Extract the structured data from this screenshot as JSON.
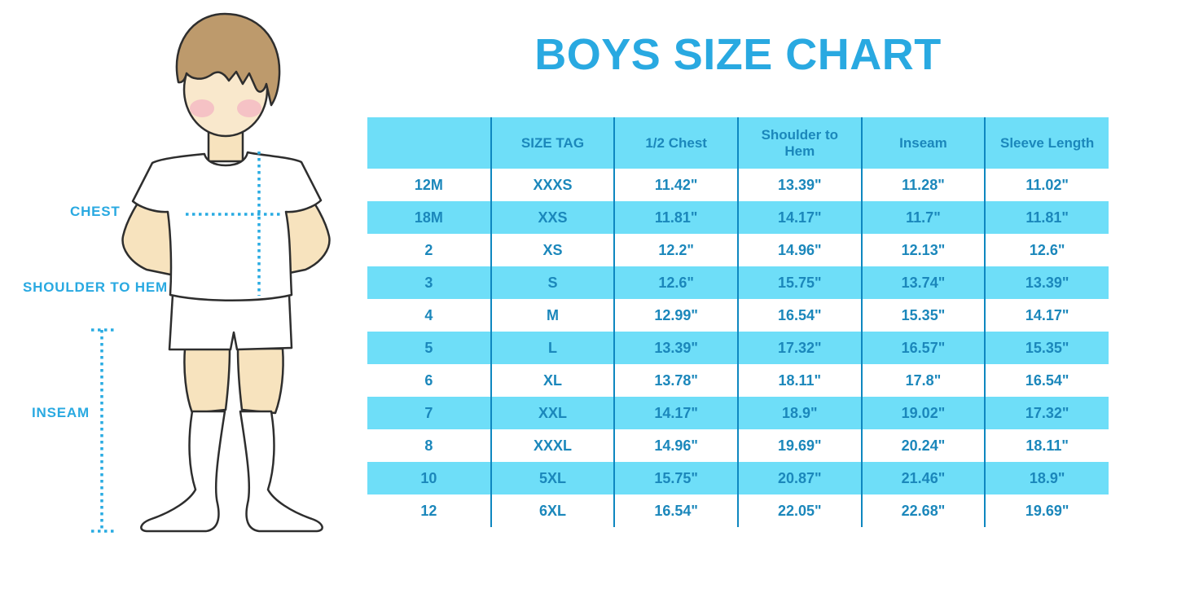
{
  "title": "BOYS SIZE CHART",
  "figure": {
    "description": "illustrated boy wearing white t-shirt, shorts and knee socks with dotted measurement guide lines",
    "measurements": {
      "chest": "CHEST",
      "shoulder_to_hem": "SHOULDER TO HEM",
      "inseam": "INSEAM"
    }
  },
  "colors": {
    "accent_blue": "#29A9E1",
    "dotted_line_blue": "#29ABE2",
    "table_stripe_blue": "#6EDEF8",
    "table_divider_blue": "#0E87C0",
    "table_text_blue": "#1B87BB",
    "skin": "#F7E3BE",
    "hair_brown": "#BD9A6C",
    "cheek_pink": "#F2A9C0"
  },
  "chart_data": {
    "type": "table",
    "title": "BOYS SIZE CHART",
    "units": "inches",
    "columns": [
      "",
      "SIZE TAG",
      "1/2 Chest",
      "Shoulder to Hem",
      "Inseam",
      "Sleeve Length"
    ],
    "rows": [
      [
        "12M",
        "XXXS",
        "11.42\"",
        "13.39\"",
        "11.28\"",
        "11.02\""
      ],
      [
        "18M",
        "XXS",
        "11.81\"",
        "14.17\"",
        "11.7\"",
        "11.81\""
      ],
      [
        "2",
        "XS",
        "12.2\"",
        "14.96\"",
        "12.13\"",
        "12.6\""
      ],
      [
        "3",
        "S",
        "12.6\"",
        "15.75\"",
        "13.74\"",
        "13.39\""
      ],
      [
        "4",
        "M",
        "12.99\"",
        "16.54\"",
        "15.35\"",
        "14.17\""
      ],
      [
        "5",
        "L",
        "13.39\"",
        "17.32\"",
        "16.57\"",
        "15.35\""
      ],
      [
        "6",
        "XL",
        "13.78\"",
        "18.11\"",
        "17.8\"",
        "16.54\""
      ],
      [
        "7",
        "XXL",
        "14.17\"",
        "18.9\"",
        "19.02\"",
        "17.32\""
      ],
      [
        "8",
        "XXXL",
        "14.96\"",
        "19.69\"",
        "20.24\"",
        "18.11\""
      ],
      [
        "10",
        "5XL",
        "15.75\"",
        "20.87\"",
        "21.46\"",
        "18.9\""
      ],
      [
        "12",
        "6XL",
        "16.54\"",
        "22.05\"",
        "22.68\"",
        "19.69\""
      ]
    ],
    "row_striping": "header and alternate rows light blue, others white"
  }
}
